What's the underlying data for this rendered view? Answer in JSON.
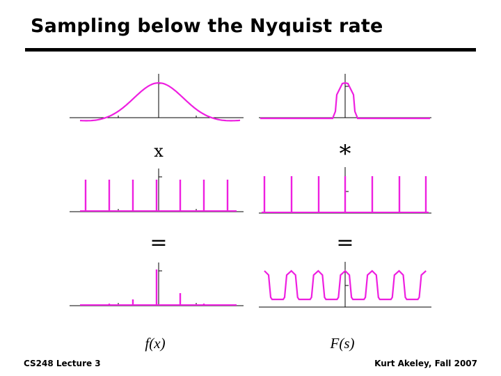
{
  "slide": {
    "title": "Sampling below the Nyquist rate"
  },
  "operators": {
    "left_multiply": "x",
    "right_convolve": "*",
    "left_equals": "=",
    "right_equals": "="
  },
  "labels": {
    "spatial_domain": "f(x)",
    "frequency_domain": "F(s)"
  },
  "footer": {
    "left": "CS248 Lecture 3",
    "right": "Kurt Akeley, Fall 2007"
  },
  "colors": {
    "curve": "#ee1fe0",
    "axis": "#000000",
    "text": "#000000"
  }
}
